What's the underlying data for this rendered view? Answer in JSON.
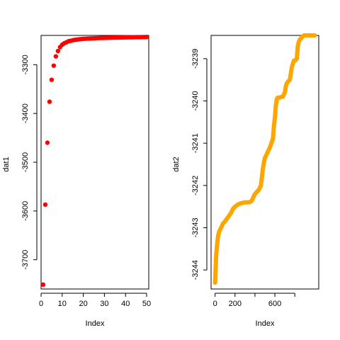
{
  "chart_data": [
    {
      "type": "scatter",
      "xlabel": "Index",
      "ylabel": "dat1",
      "xlim": [
        0,
        51
      ],
      "ylim": [
        -3760,
        -3240
      ],
      "x_ticks": [
        0,
        10,
        20,
        30,
        40,
        50
      ],
      "y_ticks": [
        -3700,
        -3600,
        -3500,
        -3400,
        -3300
      ],
      "point_color": "#ff0000",
      "series": [
        {
          "x": [
            1,
            2,
            3,
            4,
            5,
            6,
            7,
            8,
            9,
            10,
            11,
            12,
            13,
            14,
            15,
            16,
            17,
            18,
            19,
            20,
            21,
            22,
            23,
            24,
            25,
            26,
            27,
            28,
            29,
            30,
            31,
            32,
            33,
            34,
            35,
            36,
            37,
            38,
            39,
            40,
            41,
            42,
            43,
            44,
            45,
            46,
            47,
            48,
            49,
            50
          ],
          "values": [
            -3751,
            -3587,
            -3460,
            -3376,
            -3331,
            -3302,
            -3283,
            -3272,
            -3264,
            -3259,
            -3256,
            -3254,
            -3252,
            -3251,
            -3250,
            -3249,
            -3248.5,
            -3248,
            -3247.5,
            -3247,
            -3246.8,
            -3246.5,
            -3246.3,
            -3246.1,
            -3245.9,
            -3245.7,
            -3245.5,
            -3245.3,
            -3245.2,
            -3245,
            -3244.9,
            -3244.8,
            -3244.7,
            -3244.6,
            -3244.5,
            -3244.4,
            -3244.3,
            -3244.2,
            -3244.1,
            -3244,
            -3243.9,
            -3243.8,
            -3243.8,
            -3243.7,
            -3243.6,
            -3243.5,
            -3243.5,
            -3243.4,
            -3243.3,
            -3243.2
          ]
        }
      ]
    },
    {
      "type": "line",
      "xlabel": "Index",
      "ylabel": "dat2",
      "xlim": [
        -40,
        1040
      ],
      "ylim": [
        -3244.45,
        -3238.45
      ],
      "x_ticks": [
        0,
        200,
        400,
        600,
        800
      ],
      "x_tick_labels": [
        "0",
        "200",
        "",
        "600",
        ""
      ],
      "y_ticks": [
        -3244,
        -3243,
        -3242,
        -3241,
        -3240,
        -3239
      ],
      "line_color": "#ffa500",
      "series": [
        {
          "x": [
            0,
            5,
            10,
            20,
            30,
            40,
            60,
            80,
            100,
            130,
            160,
            180,
            200,
            230,
            260,
            300,
            340,
            360,
            370,
            380,
            390,
            400,
            420,
            440,
            460,
            470,
            480,
            490,
            500,
            510,
            520,
            530,
            550,
            580,
            590,
            600,
            610,
            620,
            630,
            640,
            650,
            660,
            680,
            700,
            710,
            720,
            730,
            740,
            750,
            770,
            790,
            800,
            810,
            820,
            830,
            840,
            850,
            870,
            890,
            900,
            910,
            920,
            930,
            940,
            950,
            970,
            990,
            1000
          ],
          "values": [
            -3244.3,
            -3244.0,
            -3243.7,
            -3243.4,
            -3243.2,
            -3243.1,
            -3243.0,
            -3242.9,
            -3242.85,
            -3242.75,
            -3242.65,
            -3242.55,
            -3242.5,
            -3242.45,
            -3242.42,
            -3242.4,
            -3242.4,
            -3242.38,
            -3242.35,
            -3242.3,
            -3242.25,
            -3242.2,
            -3242.15,
            -3242.1,
            -3242.0,
            -3241.8,
            -3241.6,
            -3241.45,
            -3241.35,
            -3241.3,
            -3241.25,
            -3241.2,
            -3241.1,
            -3240.9,
            -3240.6,
            -3240.4,
            -3240.1,
            -3239.95,
            -3239.92,
            -3239.92,
            -3239.92,
            -3239.91,
            -3239.9,
            -3239.8,
            -3239.65,
            -3239.58,
            -3239.55,
            -3239.52,
            -3239.5,
            -3239.2,
            -3239.05,
            -3239.05,
            -3239.03,
            -3239.0,
            -3238.7,
            -3238.6,
            -3238.55,
            -3238.5,
            -3238.45,
            -3238.45,
            -3238.45,
            -3238.45,
            -3238.45,
            -3238.45,
            -3238.45,
            -3238.45,
            -3238.45,
            -3238.45
          ]
        }
      ]
    }
  ]
}
